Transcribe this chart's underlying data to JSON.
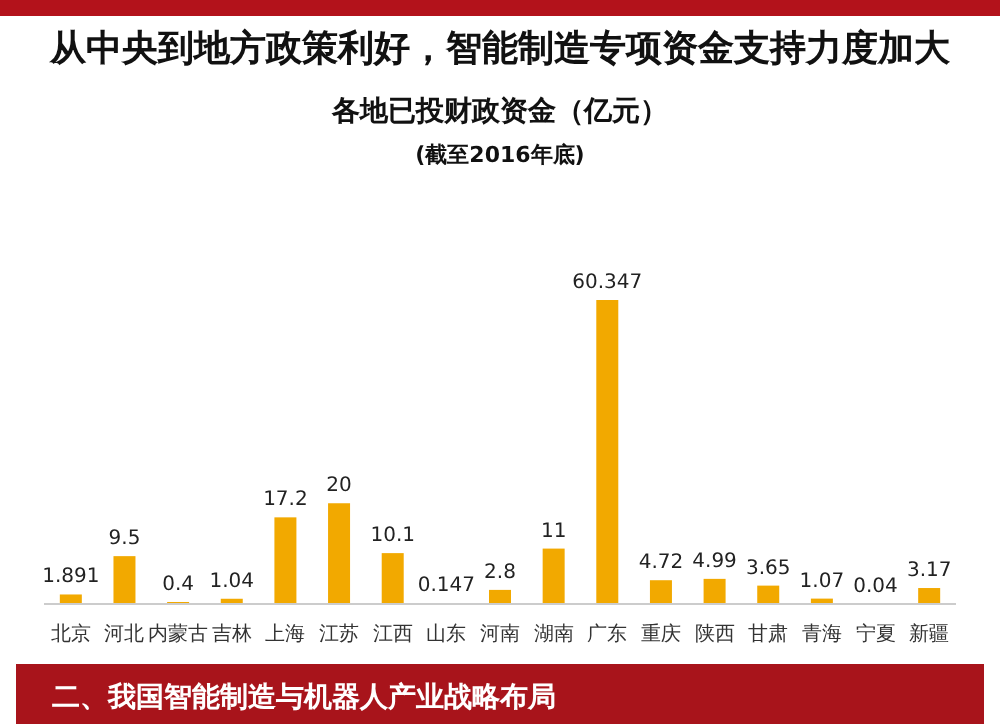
{
  "chart_data": {
    "type": "bar",
    "title": "从中央到地方政策利好，智能制造专项资金支持力度加大",
    "subtitle": "各地已投财政资金（亿元）",
    "annotations": [
      "(截至2016年底)",
      "二、我国智能制造与机器人产业战略布局"
    ],
    "categories": [
      "北京",
      "河北",
      "内蒙古",
      "吉林",
      "上海",
      "江苏",
      "江西",
      "山东",
      "河南",
      "湖南",
      "广东",
      "重庆",
      "陕西",
      "甘肃",
      "青海",
      "宁夏",
      "新疆"
    ],
    "values": [
      1.891,
      9.5,
      0.4,
      1.04,
      17.2,
      20,
      10.1,
      0.147,
      2.8,
      11,
      60.347,
      4.72,
      4.99,
      3.65,
      1.07,
      0.04,
      3.17
    ],
    "color": "#f2a900",
    "data_labels": true
  }
}
